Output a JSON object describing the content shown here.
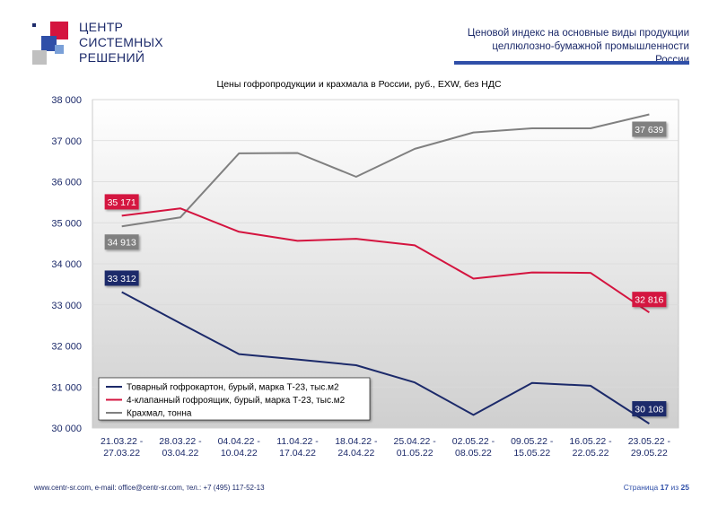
{
  "header": {
    "logo_lines": [
      "ЦЕНТР",
      "СИСТЕМНЫХ",
      "РЕШЕНИЙ"
    ],
    "right_lines": [
      "Ценовой индекс на основные виды продукции",
      "целлюлозно-бумажной промышленности России"
    ]
  },
  "footer": {
    "contacts": "www.centr-sr.com, e-mail: office@centr-sr.com, тел.: +7 (495) 117-52-13",
    "page_word": "Страница",
    "page_number": "17",
    "page_of": "из",
    "page_total": "25"
  },
  "colors": {
    "brand_blue": "#1c2a6a",
    "accent_blue": "#2f4fa8",
    "series_navy": "#1c2a6a",
    "series_red": "#d4143f",
    "series_gray": "#808080"
  },
  "chart_data": {
    "type": "line",
    "title": "Цены гофропродукции и крахмала в России, руб., EXW, без НДС",
    "categories": [
      [
        "21.03.22 -",
        "27.03.22"
      ],
      [
        "28.03.22 -",
        "03.04.22"
      ],
      [
        "04.04.22 -",
        "10.04.22"
      ],
      [
        "11.04.22 -",
        "17.04.22"
      ],
      [
        "18.04.22 -",
        "24.04.22"
      ],
      [
        "25.04.22 -",
        "01.05.22"
      ],
      [
        "02.05.22 -",
        "08.05.22"
      ],
      [
        "09.05.22 -",
        "15.05.22"
      ],
      [
        "16.05.22 -",
        "22.05.22"
      ],
      [
        "23.05.22 -",
        "29.05.22"
      ]
    ],
    "ylim": [
      30000,
      38000
    ],
    "yticks": [
      30000,
      31000,
      32000,
      33000,
      34000,
      35000,
      36000,
      37000,
      38000
    ],
    "ytick_labels": [
      "30 000",
      "31 000",
      "32 000",
      "33 000",
      "34 000",
      "35 000",
      "36 000",
      "37 000",
      "38 000"
    ],
    "grid": true,
    "legend_position": "bottom-left",
    "series": [
      {
        "name": "Товарный гофрокартон, бурый, марка Т-23, тыс.м2",
        "color": "#1c2a6a",
        "values": [
          33312,
          32550,
          31800,
          31670,
          31530,
          31110,
          30320,
          31100,
          31030,
          30108
        ],
        "labels": [
          {
            "index": 0,
            "text": "33 312"
          },
          {
            "index": 9,
            "text": "30 108"
          }
        ]
      },
      {
        "name": "4-клапанный гофроящик, бурый, марка Т-23, тыс.м2",
        "color": "#d4143f",
        "values": [
          35171,
          35350,
          34780,
          34560,
          34610,
          34450,
          33640,
          33790,
          33780,
          32816
        ],
        "labels": [
          {
            "index": 0,
            "text": "35 171"
          },
          {
            "index": 9,
            "text": "32 816"
          }
        ]
      },
      {
        "name": "Крахмал, тонна",
        "color": "#808080",
        "values": [
          34913,
          35130,
          36690,
          36700,
          36120,
          36800,
          37200,
          37300,
          37300,
          37639
        ],
        "labels": [
          {
            "index": 0,
            "text": "34 913"
          },
          {
            "index": 9,
            "text": "37 639"
          }
        ]
      }
    ]
  }
}
